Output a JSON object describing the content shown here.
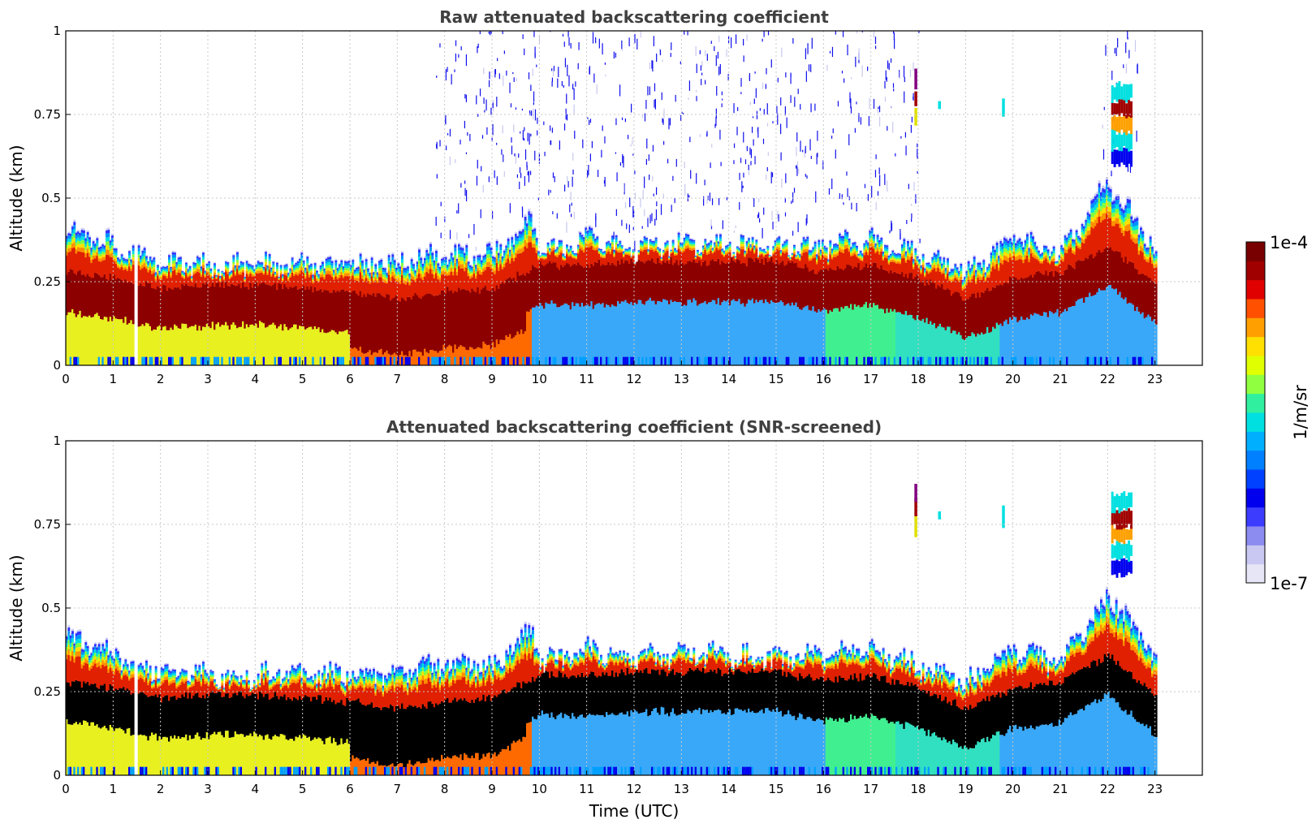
{
  "chart_data": [
    {
      "type": "heatmap",
      "title": "Raw attenuated backscattering coefficient",
      "xlabel": "",
      "ylabel": "Altitude (km)",
      "xlim": [
        0,
        24
      ],
      "ylim": [
        0,
        1
      ],
      "xticks": [
        "0",
        "1",
        "2",
        "3",
        "4",
        "5",
        "6",
        "7",
        "8",
        "9",
        "10",
        "11",
        "12",
        "13",
        "14",
        "15",
        "16",
        "17",
        "18",
        "19",
        "20",
        "21",
        "22",
        "23"
      ],
      "yticks": [
        "0",
        "0.25",
        "0.5",
        "0.75",
        "1"
      ],
      "grid": true,
      "data_end_hour": 23,
      "gap_hour": 1.45,
      "layer_top_km": [
        [
          0,
          0.42
        ],
        [
          1,
          0.36
        ],
        [
          2,
          0.31
        ],
        [
          3,
          0.3
        ],
        [
          4,
          0.3
        ],
        [
          5,
          0.31
        ],
        [
          6,
          0.3
        ],
        [
          7,
          0.31
        ],
        [
          8,
          0.34
        ],
        [
          9,
          0.33
        ],
        [
          9.8,
          0.45
        ],
        [
          10,
          0.34
        ],
        [
          11,
          0.38
        ],
        [
          12,
          0.35
        ],
        [
          13,
          0.37
        ],
        [
          14,
          0.36
        ],
        [
          15,
          0.35
        ],
        [
          16,
          0.36
        ],
        [
          17,
          0.38
        ],
        [
          18,
          0.33
        ],
        [
          19,
          0.28
        ],
        [
          20,
          0.38
        ],
        [
          21,
          0.34
        ],
        [
          22,
          0.55
        ],
        [
          23,
          0.35
        ]
      ],
      "layer_core_km": [
        [
          0,
          0.22
        ],
        [
          1,
          0.2
        ],
        [
          2,
          0.17
        ],
        [
          3,
          0.18
        ],
        [
          4,
          0.18
        ],
        [
          5,
          0.17
        ],
        [
          6,
          0.16
        ],
        [
          7,
          0.14
        ],
        [
          8,
          0.16
        ],
        [
          9,
          0.17
        ],
        [
          10,
          0.24
        ],
        [
          11,
          0.24
        ],
        [
          12,
          0.25
        ],
        [
          13,
          0.25
        ],
        [
          14,
          0.25
        ],
        [
          15,
          0.25
        ],
        [
          16,
          0.22
        ],
        [
          17,
          0.24
        ],
        [
          18,
          0.2
        ],
        [
          19,
          0.14
        ],
        [
          20,
          0.2
        ],
        [
          21,
          0.22
        ],
        [
          22,
          0.3
        ],
        [
          23,
          0.18
        ]
      ],
      "near_surface": [
        [
          0,
          "high"
        ],
        [
          6,
          "very-high"
        ],
        [
          9.8,
          "low"
        ],
        [
          16,
          "medium"
        ],
        [
          17.5,
          "low-medium"
        ],
        [
          19.7,
          "low"
        ],
        [
          23,
          "low"
        ]
      ],
      "isolated_features": [
        {
          "hour": 17.95,
          "bottom_km": 0.72,
          "top_km": 0.88,
          "level": "max"
        },
        {
          "hour": 18.45,
          "bottom_km": 0.76,
          "top_km": 0.79,
          "level": "medium"
        },
        {
          "hour": 19.8,
          "bottom_km": 0.74,
          "top_km": 0.8,
          "level": "medium"
        },
        {
          "hour": 22.3,
          "bottom_km": 0.6,
          "top_km": 0.84,
          "level": "high"
        }
      ]
    },
    {
      "type": "heatmap",
      "title": "Attenuated backscattering coefficient (SNR-screened)",
      "xlabel": "Time (UTC)",
      "ylabel": "Altitude (km)",
      "xlim": [
        0,
        24
      ],
      "ylim": [
        0,
        1
      ],
      "xticks": [
        "0",
        "1",
        "2",
        "3",
        "4",
        "5",
        "6",
        "7",
        "8",
        "9",
        "10",
        "11",
        "12",
        "13",
        "14",
        "15",
        "16",
        "17",
        "18",
        "19",
        "20",
        "21",
        "22",
        "23"
      ],
      "yticks": [
        "0",
        "0.25",
        "0.5",
        "0.75",
        "1"
      ],
      "grid": true,
      "saturated_color": "#000000",
      "data_end_hour": 23,
      "gap_hour": 1.45
    }
  ],
  "colorbar": {
    "max_label": "1e-4",
    "min_label": "1e-7",
    "unit_label": "1/m/sr",
    "colors": [
      "#e6e6f7",
      "#c8c8f2",
      "#8c8cf0",
      "#3c3cff",
      "#0000ee",
      "#0040ff",
      "#0080ff",
      "#00b0ff",
      "#00e0e0",
      "#30f0a0",
      "#90ff40",
      "#e0ff00",
      "#ffe000",
      "#ffa000",
      "#ff5000",
      "#e00000",
      "#a00000",
      "#780000"
    ]
  }
}
